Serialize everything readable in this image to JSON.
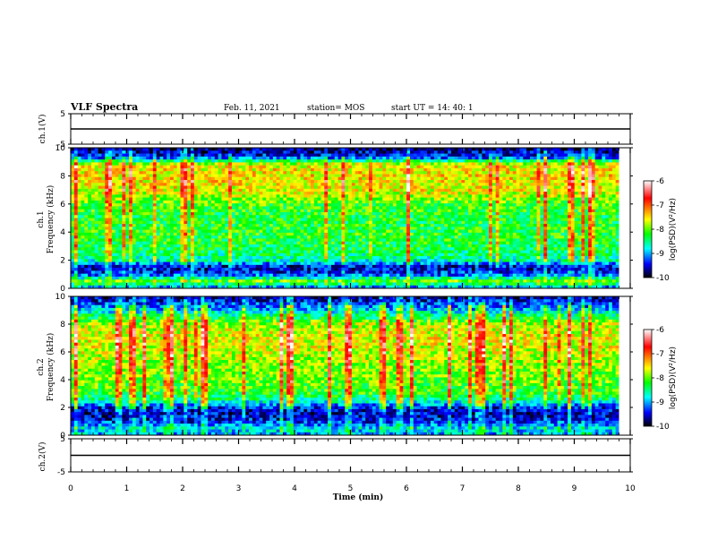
{
  "header": {
    "title": "VLF Spectra",
    "date": "Feb. 11, 2021",
    "station": "station= MOS",
    "start": "start  UT =   14: 40: 1"
  },
  "colorbar": {
    "label": "log(PSD)(V²/Hz)",
    "ticks": [
      "-6",
      "-7",
      "-8",
      "-9",
      "-10"
    ],
    "colors": [
      "#ffffff",
      "#ff0000",
      "#ffff00",
      "#00ff00",
      "#00ffff",
      "#0000ff",
      "#000000"
    ]
  },
  "chart_data": [
    {
      "type": "line",
      "name": "waveform-ch1",
      "ylabel": "ch.1(V)",
      "yticks": [
        "5",
        "-5"
      ],
      "ylim": [
        -5,
        5
      ],
      "x": [
        0,
        10
      ],
      "y": [
        0,
        0
      ],
      "xlim": [
        0,
        10
      ]
    },
    {
      "type": "heatmap",
      "name": "spectrogram-ch1",
      "ylabel_top": "ch.1",
      "ylabel": "Frequency (kHz)",
      "yticks": [
        "10",
        "8",
        "6",
        "4",
        "2",
        "0"
      ],
      "ylim": [
        0,
        10
      ],
      "xlim": [
        0,
        9.8
      ],
      "zlim": [
        -10,
        -6
      ],
      "band_profile": [
        {
          "f": 0.0,
          "psd": -9.2
        },
        {
          "f": 0.5,
          "psd": -8.0
        },
        {
          "f": 1.0,
          "psd": -9.3
        },
        {
          "f": 1.5,
          "psd": -9.6
        },
        {
          "f": 2.0,
          "psd": -8.6
        },
        {
          "f": 3.0,
          "psd": -8.3
        },
        {
          "f": 4.0,
          "psd": -8.2
        },
        {
          "f": 5.0,
          "psd": -8.3
        },
        {
          "f": 6.0,
          "psd": -8.1
        },
        {
          "f": 7.0,
          "psd": -7.6
        },
        {
          "f": 8.0,
          "psd": -7.5
        },
        {
          "f": 8.8,
          "psd": -7.6
        },
        {
          "f": 9.3,
          "psd": -9.3
        },
        {
          "f": 10.0,
          "psd": -9.8
        }
      ]
    },
    {
      "type": "heatmap",
      "name": "spectrogram-ch2",
      "ylabel_top": "ch.2",
      "ylabel": "Frequency (kHz)",
      "yticks": [
        "10",
        "8",
        "6",
        "4",
        "2",
        "0"
      ],
      "ylim": [
        0,
        10
      ],
      "xlim": [
        0,
        9.8
      ],
      "zlim": [
        -10,
        -6
      ],
      "band_profile": [
        {
          "f": 0.0,
          "psd": -9.0
        },
        {
          "f": 0.5,
          "psd": -8.8
        },
        {
          "f": 1.0,
          "psd": -9.4
        },
        {
          "f": 1.5,
          "psd": -9.6
        },
        {
          "f": 2.0,
          "psd": -9.4
        },
        {
          "f": 2.5,
          "psd": -8.6
        },
        {
          "f": 3.0,
          "psd": -8.2
        },
        {
          "f": 4.0,
          "psd": -8.0
        },
        {
          "f": 5.0,
          "psd": -7.9
        },
        {
          "f": 6.0,
          "psd": -7.7
        },
        {
          "f": 7.0,
          "psd": -7.6
        },
        {
          "f": 8.0,
          "psd": -7.8
        },
        {
          "f": 9.0,
          "psd": -8.9
        },
        {
          "f": 10.0,
          "psd": -9.7
        }
      ]
    },
    {
      "type": "line",
      "name": "waveform-ch2",
      "ylabel": "ch.2(V)",
      "yticks": [
        "5",
        "-5"
      ],
      "ylim": [
        -5,
        5
      ],
      "x": [
        0,
        10
      ],
      "y": [
        0,
        0
      ],
      "xlim": [
        0,
        10
      ]
    }
  ],
  "xaxis": {
    "label": "Time  (min)",
    "ticks": [
      "0",
      "1",
      "2",
      "3",
      "4",
      "5",
      "6",
      "7",
      "8",
      "9",
      "10"
    ],
    "range": [
      0,
      10
    ]
  }
}
